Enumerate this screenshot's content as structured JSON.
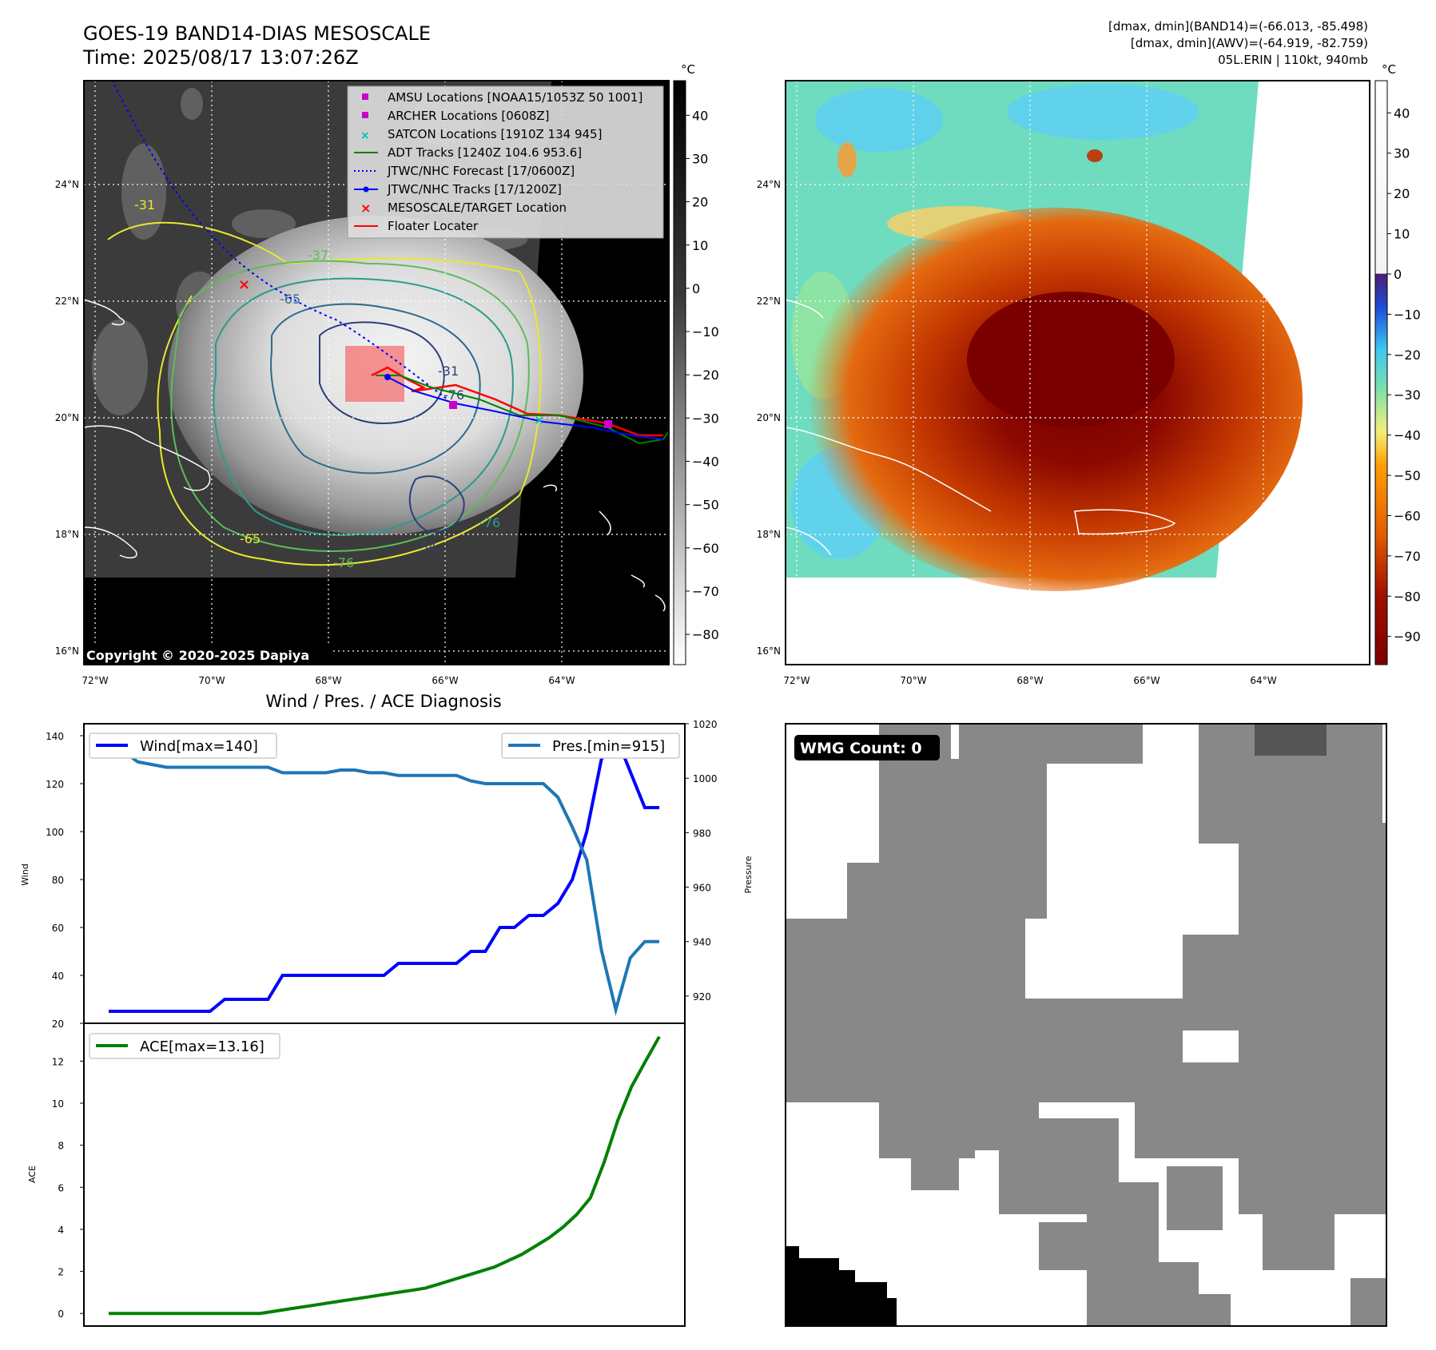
{
  "title_block": {
    "line1": "GOES-19 BAND14-DIAS MESOSCALE",
    "line2": "Time: 2025/08/17 13:07:26Z"
  },
  "info_block": {
    "line1": "[dmax, dmin](BAND14)=(-66.013, -85.498)",
    "line2": "[dmax, dmin](AWV)=(-64.919, -82.759)",
    "line3": "05L.ERIN | 110kt, 940mb"
  },
  "copyright": "Copyright © 2020-2025 Dapiya",
  "map_axes": {
    "lat_ticks": [
      "24°N",
      "22°N",
      "20°N",
      "18°N",
      "16°N"
    ],
    "lon_ticks": [
      "72°W",
      "70°W",
      "68°W",
      "66°W",
      "64°W"
    ]
  },
  "contour_labels": [
    "-31",
    "-37",
    "-65",
    "-76",
    "-54",
    "-76",
    "-65",
    "-31",
    "-76"
  ],
  "legend": {
    "items": [
      {
        "label": "AMSU Locations [NOAA15/1053Z 50 1001]",
        "marker": "square",
        "color": "#cc00cc"
      },
      {
        "label": "ARCHER Locations [0608Z]",
        "marker": "square",
        "color": "#cc00cc"
      },
      {
        "label": "SATCON Locations [1910Z 134 945]",
        "marker": "x",
        "color": "#00bbbb"
      },
      {
        "label": "ADT Tracks [1240Z 104.6 953.6]",
        "marker": "line",
        "color": "#008000"
      },
      {
        "label": "JTWC/NHC Forecast [17/0600Z]",
        "marker": "dotted",
        "color": "#0000ff"
      },
      {
        "label": "JTWC/NHC Tracks [17/1200Z]",
        "marker": "line-dot",
        "color": "#0000ff"
      },
      {
        "label": "MESOSCALE/TARGET Location",
        "marker": "x",
        "color": "#ff0000"
      },
      {
        "label": "Floater Locater",
        "marker": "line",
        "color": "#ff0000"
      }
    ]
  },
  "colorbar_ir": {
    "unit": "°C",
    "ticks": [
      "40",
      "30",
      "20",
      "10",
      "0",
      "−10",
      "−20",
      "−30",
      "−40",
      "−50",
      "−60",
      "−70",
      "−80"
    ]
  },
  "colorbar_awv": {
    "unit": "°C",
    "ticks": [
      "40",
      "30",
      "20",
      "10",
      "0",
      "−10",
      "−20",
      "−30",
      "−40",
      "−50",
      "−60",
      "−70",
      "−80",
      "−90"
    ]
  },
  "wmg": {
    "label": "WMG Count: 0"
  },
  "colors": {
    "wind": "#0000ff",
    "pressure": "#1f77b4",
    "ace": "#008000"
  },
  "chart_data": [
    {
      "type": "line",
      "title": "Wind / Pres. / ACE Diagnosis",
      "ylabel": "Wind",
      "ylim": [
        20,
        145
      ],
      "yticks": [
        20,
        40,
        60,
        80,
        100,
        120,
        140
      ],
      "series": [
        {
          "name": "Wind[max=140]",
          "values": [
            25,
            25,
            25,
            25,
            25,
            25,
            25,
            25,
            30,
            30,
            30,
            30,
            40,
            40,
            40,
            40,
            40,
            40,
            40,
            40,
            45,
            45,
            45,
            45,
            45,
            50,
            50,
            60,
            60,
            65,
            65,
            70,
            80,
            100,
            130,
            140,
            125,
            110,
            110
          ]
        }
      ]
    },
    {
      "type": "line",
      "ylabel": "Pressure",
      "ylim": [
        910,
        1020
      ],
      "yticks": [
        920,
        940,
        960,
        980,
        1000,
        1020
      ],
      "series": [
        {
          "name": "Pres.[min=915]",
          "values": [
            1010,
            1010,
            1006,
            1005,
            1004,
            1004,
            1004,
            1004,
            1004,
            1004,
            1004,
            1004,
            1002,
            1002,
            1002,
            1002,
            1003,
            1003,
            1002,
            1002,
            1001,
            1001,
            1001,
            1001,
            1001,
            999,
            998,
            998,
            998,
            998,
            998,
            993,
            982,
            970,
            937,
            915,
            934,
            940,
            940
          ]
        }
      ]
    },
    {
      "type": "line",
      "ylabel": "ACE",
      "ylim": [
        -0.6,
        13.8
      ],
      "yticks": [
        0,
        2,
        4,
        6,
        8,
        10,
        12
      ],
      "series": [
        {
          "name": "ACE[max=13.16]",
          "values": [
            0,
            0,
            0,
            0,
            0,
            0,
            0,
            0,
            0,
            0,
            0,
            0,
            0.1,
            0.2,
            0.3,
            0.4,
            0.5,
            0.6,
            0.7,
            0.8,
            0.9,
            1.0,
            1.1,
            1.2,
            1.4,
            1.6,
            1.8,
            2.0,
            2.2,
            2.5,
            2.8,
            3.2,
            3.6,
            4.1,
            4.7,
            5.5,
            7.2,
            9.2,
            10.8,
            12.0,
            13.16
          ]
        }
      ]
    }
  ]
}
